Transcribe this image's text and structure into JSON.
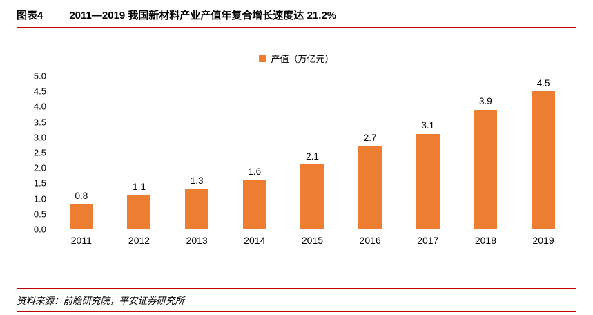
{
  "header": {
    "label": "图表4",
    "title": "2011—2019 我国新材料产业产值年复合增长速度达 21.2%"
  },
  "chart_data": {
    "type": "bar",
    "title": "2011—2019 我国新材料产业产值年复合增长速度达 21.2%",
    "legend": "产值（万亿元）",
    "legend_position": "top",
    "categories": [
      "2011",
      "2012",
      "2013",
      "2014",
      "2015",
      "2016",
      "2017",
      "2018",
      "2019"
    ],
    "values": [
      0.8,
      1.1,
      1.3,
      1.6,
      2.1,
      2.7,
      3.1,
      3.9,
      4.5
    ],
    "xlabel": "",
    "ylabel": "",
    "ylim": [
      0,
      5
    ],
    "ytick_step": 0.5,
    "ytick_labels": [
      "0.0",
      "0.5",
      "1.0",
      "1.5",
      "2.0",
      "2.5",
      "3.0",
      "3.5",
      "4.0",
      "4.5",
      "5.0"
    ],
    "grid": false,
    "bar_color": "#ED7D31"
  },
  "footer": {
    "source": "资料来源：前瞻研究院，平安证券研究所"
  },
  "colors": {
    "bar": "#ED7D31",
    "rule": "#C00000",
    "axis": "#404040"
  }
}
